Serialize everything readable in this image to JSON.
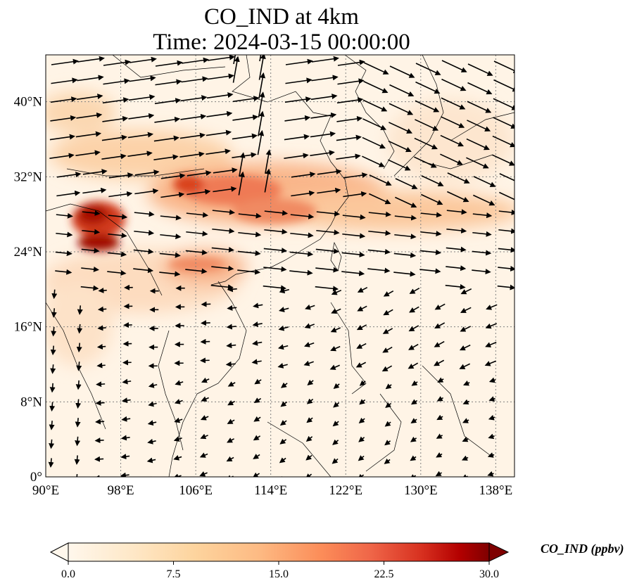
{
  "title": {
    "line1": "CO_IND at 4km",
    "line2": "Time: 2024-03-15 00:00:00"
  },
  "map": {
    "lon_range": [
      90,
      140
    ],
    "lat_range": [
      0,
      45
    ],
    "x_ticks": [
      "90°E",
      "98°E",
      "106°E",
      "114°E",
      "122°E",
      "130°E",
      "138°E"
    ],
    "y_ticks": [
      "0°",
      "8°N",
      "16°N",
      "24°N",
      "32°N",
      "40°N"
    ],
    "x_tick_values": [
      90,
      98,
      106,
      114,
      122,
      130,
      138
    ],
    "y_tick_values": [
      0,
      8,
      16,
      24,
      32,
      40
    ],
    "gridlines": true,
    "field_colormap": "OrRd",
    "wind_vectors": true
  },
  "colorbar": {
    "label": "CO_IND (ppbv)",
    "ticks": [
      "0.0",
      "7.5",
      "15.0",
      "22.5",
      "30.0"
    ],
    "min": 0,
    "max": 30,
    "extend": "both",
    "colors": [
      "#fff7ec",
      "#fee8c8",
      "#fdd49e",
      "#fdbb84",
      "#fc8d59",
      "#ef6548",
      "#d7301f",
      "#b30000",
      "#7f0000"
    ]
  }
}
